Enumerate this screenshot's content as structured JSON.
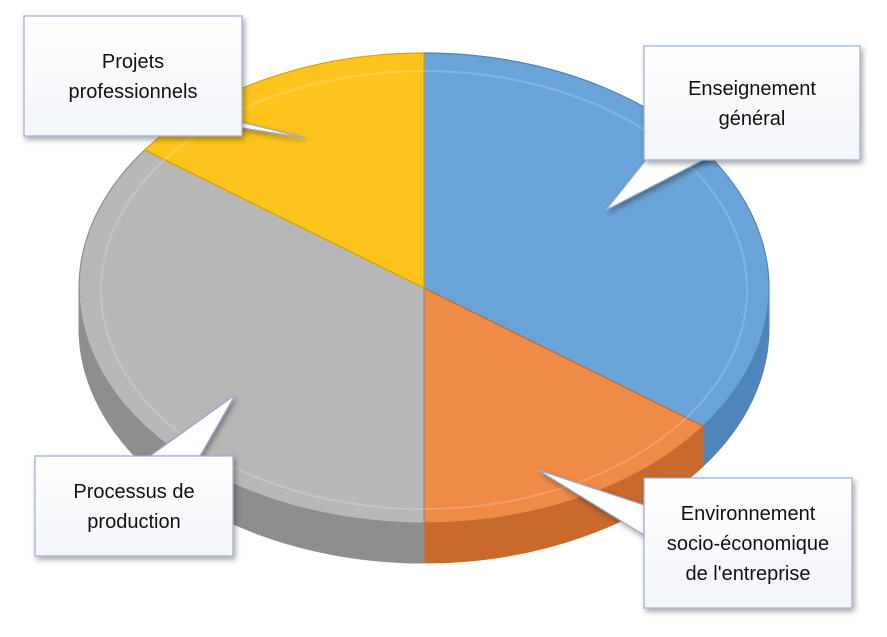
{
  "chart_data": {
    "type": "pie",
    "style": "3d-pie-with-callouts",
    "slices": [
      {
        "label_lines": [
          "Enseignement",
          "général"
        ],
        "value": 35,
        "color": "#6aa3d8",
        "side_color": "#4f85ba"
      },
      {
        "label_lines": [
          "Environnement",
          "socio-économique",
          "de l'entreprise"
        ],
        "value": 15,
        "color": "#ee8b47",
        "side_color": "#c86a2c"
      },
      {
        "label_lines": [
          "Processus de",
          "production"
        ],
        "value": 35,
        "color": "#b8b8b8",
        "side_color": "#8e8e8e"
      },
      {
        "label_lines": [
          "Projets",
          "professionnels"
        ],
        "value": 15,
        "color": "#fdc41e",
        "side_color": "#d9a200"
      }
    ],
    "legend": "none"
  }
}
